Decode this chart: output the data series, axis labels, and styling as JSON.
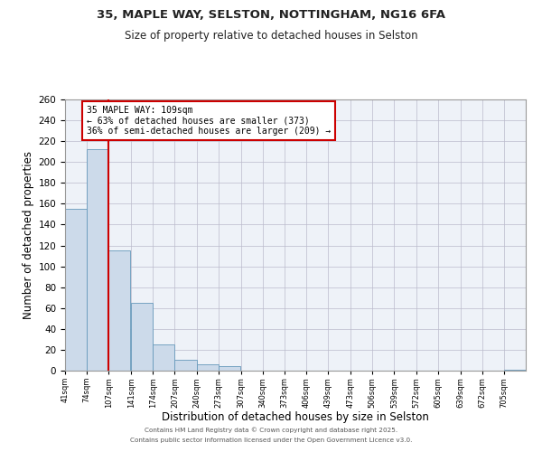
{
  "title": "35, MAPLE WAY, SELSTON, NOTTINGHAM, NG16 6FA",
  "subtitle": "Size of property relative to detached houses in Selston",
  "xlabel": "Distribution of detached houses by size in Selston",
  "ylabel": "Number of detached properties",
  "bar_color": "#ccdaea",
  "bar_edge_color": "#6699bb",
  "background_color": "#eef2f8",
  "grid_color": "#bbbbcc",
  "bin_edges": [
    41,
    74,
    107,
    141,
    174,
    207,
    240,
    273,
    307,
    340,
    373,
    406,
    439,
    473,
    506,
    539,
    572,
    605,
    639,
    672,
    705
  ],
  "bin_labels": [
    "41sqm",
    "74sqm",
    "107sqm",
    "141sqm",
    "174sqm",
    "207sqm",
    "240sqm",
    "273sqm",
    "307sqm",
    "340sqm",
    "373sqm",
    "406sqm",
    "439sqm",
    "473sqm",
    "506sqm",
    "539sqm",
    "572sqm",
    "605sqm",
    "639sqm",
    "672sqm",
    "705sqm"
  ],
  "counts": [
    155,
    212,
    115,
    65,
    25,
    10,
    6,
    4,
    0,
    0,
    0,
    0,
    0,
    0,
    0,
    0,
    0,
    0,
    0,
    0,
    1
  ],
  "vline_x": 107,
  "vline_color": "#cc0000",
  "annotation_title": "35 MAPLE WAY: 109sqm",
  "annotation_line1": "← 63% of detached houses are smaller (373)",
  "annotation_line2": "36% of semi-detached houses are larger (209) →",
  "annotation_box_color": "#ffffff",
  "annotation_border_color": "#cc0000",
  "ylim": [
    0,
    260
  ],
  "yticks": [
    0,
    20,
    40,
    60,
    80,
    100,
    120,
    140,
    160,
    180,
    200,
    220,
    240,
    260
  ],
  "footer_line1": "Contains HM Land Registry data © Crown copyright and database right 2025.",
  "footer_line2": "Contains public sector information licensed under the Open Government Licence v3.0."
}
